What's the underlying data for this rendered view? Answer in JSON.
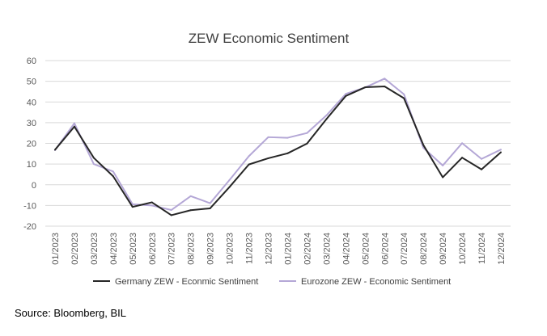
{
  "source": "Source: Bloomberg, BIL",
  "chart_data": {
    "type": "line",
    "title": "ZEW Economic Sentiment",
    "xlabel": "",
    "ylabel": "",
    "ylim": [
      -20,
      60
    ],
    "yticks": [
      60,
      50,
      40,
      30,
      20,
      10,
      0,
      -10,
      -20
    ],
    "grid": true,
    "legend_position": "bottom",
    "categories": [
      "01/2023",
      "02/2023",
      "03/2023",
      "04/2023",
      "05/2023",
      "06/2023",
      "07/2023",
      "08/2023",
      "09/2023",
      "10/2023",
      "11/2023",
      "12/2023",
      "01/2024",
      "02/2024",
      "03/2024",
      "04/2024",
      "05/2024",
      "06/2024",
      "07/2024",
      "08/2024",
      "09/2024",
      "10/2024",
      "11/2024",
      "12/2024"
    ],
    "series": [
      {
        "name": "Germany ZEW - Econmic Sentiment",
        "color": "#262626",
        "values": [
          16.9,
          28.1,
          13.0,
          4.1,
          -10.7,
          -8.5,
          -14.7,
          -12.3,
          -11.4,
          -1.1,
          9.8,
          12.8,
          15.2,
          19.9,
          31.7,
          42.9,
          47.1,
          47.5,
          41.8,
          19.2,
          3.6,
          13.1,
          7.4,
          15.7
        ]
      },
      {
        "name": "Eurozone ZEW - Economic Sentiment",
        "color": "#b4a7d6",
        "values": [
          16.7,
          29.7,
          10.0,
          6.4,
          -9.4,
          -10.0,
          -12.2,
          -5.5,
          -8.9,
          2.3,
          13.8,
          23.0,
          22.7,
          25.0,
          33.5,
          43.9,
          47.0,
          51.3,
          43.7,
          17.9,
          9.3,
          20.1,
          12.5,
          17.0
        ]
      }
    ]
  }
}
